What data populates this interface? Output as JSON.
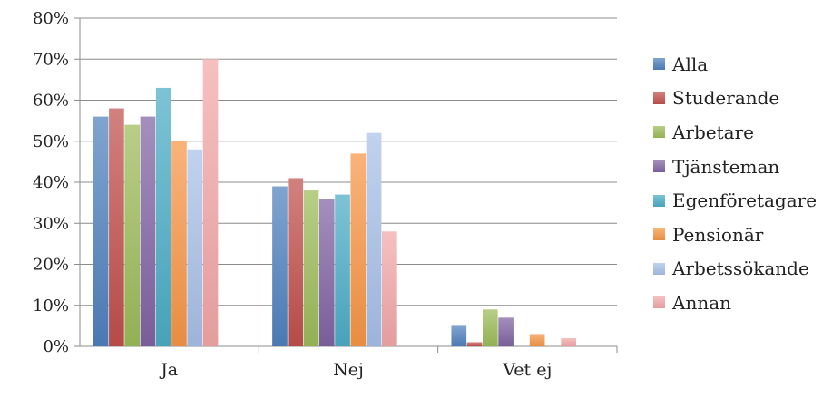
{
  "chart_data": {
    "type": "bar",
    "title": "",
    "xlabel": "",
    "ylabel": "",
    "categories": [
      "Ja",
      "Nej",
      "Vet ej"
    ],
    "ylim": [
      0,
      80
    ],
    "yticks": [
      "0%",
      "10%",
      "20%",
      "30%",
      "40%",
      "50%",
      "60%",
      "70%",
      "80%"
    ],
    "grid": true,
    "legend_position": "right",
    "series": [
      {
        "name": "Alla",
        "color": "#4f81bd",
        "values": [
          56,
          39,
          5
        ]
      },
      {
        "name": "Studerande",
        "color": "#c0504d",
        "values": [
          58,
          41,
          1
        ]
      },
      {
        "name": "Arbetare",
        "color": "#9bbb59",
        "values": [
          54,
          38,
          9
        ]
      },
      {
        "name": "Tjänsteman",
        "color": "#8064a2",
        "values": [
          56,
          36,
          7
        ]
      },
      {
        "name": "Egenföretagare",
        "color": "#4bacc6",
        "values": [
          63,
          37,
          0
        ]
      },
      {
        "name": "Pensionär",
        "color": "#f79646",
        "values": [
          50,
          47,
          3
        ]
      },
      {
        "name": "Arbetssökande",
        "color": "#a7c0e8",
        "values": [
          48,
          52,
          0
        ]
      },
      {
        "name": "Annan",
        "color": "#f2a7a7",
        "values": [
          70,
          28,
          2
        ]
      }
    ]
  }
}
